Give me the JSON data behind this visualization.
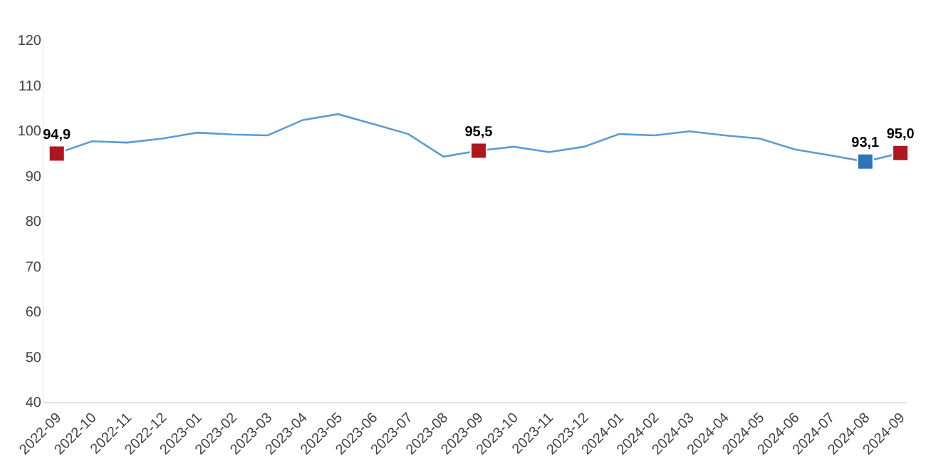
{
  "chart_data": {
    "type": "line",
    "categories": [
      "2022-09",
      "2022-10",
      "2022-11",
      "2022-12",
      "2023-01",
      "2023-02",
      "2023-03",
      "2023-04",
      "2023-05",
      "2023-06",
      "2023-07",
      "2023-08",
      "2023-09",
      "2023-10",
      "2023-11",
      "2023-12",
      "2024-01",
      "2024-02",
      "2024-03",
      "2024-04",
      "2024-05",
      "2024-06",
      "2024-07",
      "2024-08",
      "2024-09"
    ],
    "series": [
      {
        "color": "#5b9bd5",
        "marker": "none",
        "values": [
          94.9,
          97.6,
          97.3,
          98.2,
          99.5,
          99.1,
          98.9,
          102.3,
          103.6,
          101.4,
          99.2,
          94.2,
          95.5,
          96.4,
          95.2,
          96.4,
          99.2,
          98.9,
          99.8,
          98.9,
          98.2,
          95.8,
          94.5,
          93.1,
          95.0
        ]
      },
      {
        "type": "scatter",
        "marker": "square",
        "values": [
          94.9,
          null,
          null,
          null,
          null,
          null,
          null,
          null,
          null,
          null,
          null,
          null,
          95.5,
          null,
          null,
          null,
          null,
          null,
          null,
          null,
          null,
          null,
          null,
          93.1,
          95.0
        ],
        "colors": [
          "#b0161e",
          null,
          null,
          null,
          null,
          null,
          null,
          null,
          null,
          null,
          null,
          null,
          "#b0161e",
          null,
          null,
          null,
          null,
          null,
          null,
          null,
          null,
          null,
          null,
          "#2e75b6",
          "#b0161e"
        ],
        "value_labels": [
          "94,9",
          null,
          null,
          null,
          null,
          null,
          null,
          null,
          null,
          null,
          null,
          null,
          "95,5",
          null,
          null,
          null,
          null,
          null,
          null,
          null,
          null,
          null,
          null,
          "93,1",
          "95,0"
        ]
      }
    ],
    "ylim": [
      40,
      120
    ],
    "yticks": [
      40,
      50,
      60,
      70,
      80,
      90,
      100,
      110,
      120
    ],
    "grid": false
  }
}
